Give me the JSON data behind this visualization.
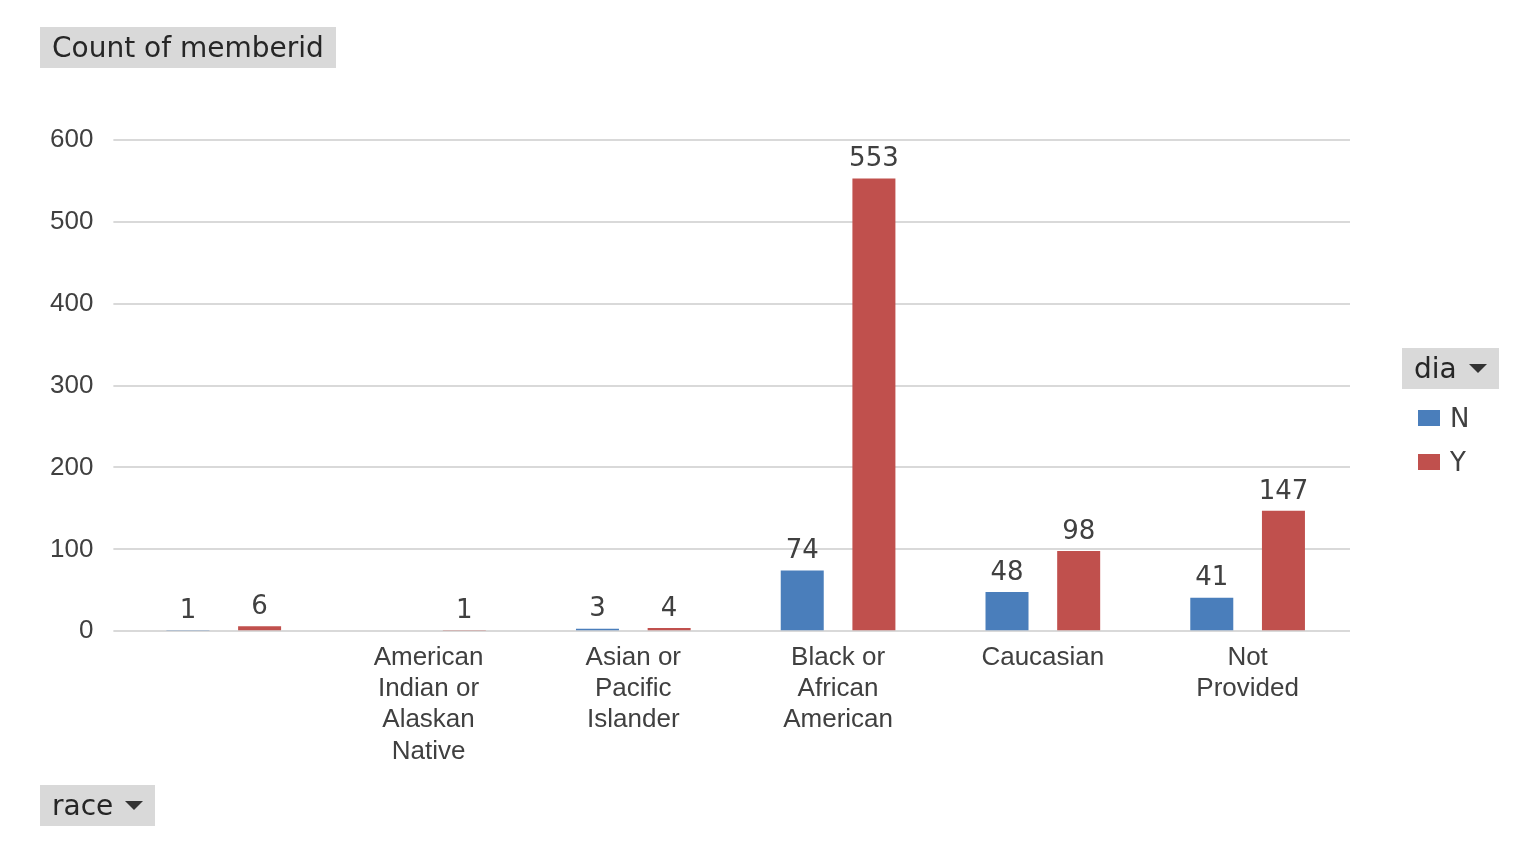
{
  "chart_data": {
    "type": "bar",
    "title": "Count of memberid",
    "xlabel": "race",
    "legend_title": "dia",
    "categories": [
      null,
      "American Indian or Alaskan Native",
      "Asian or Pacific Islander",
      "Black or African American",
      "Caucasian",
      "Not Provided"
    ],
    "series": [
      {
        "name": "N",
        "color": "#4a7ebb",
        "values": [
          1,
          null,
          3,
          74,
          48,
          41
        ]
      },
      {
        "name": "Y",
        "color": "#c0504d",
        "values": [
          6,
          1,
          4,
          553,
          98,
          147
        ]
      }
    ],
    "ylim": [
      0,
      600
    ],
    "yticks": [
      0,
      100,
      200,
      300,
      400,
      500,
      600
    ],
    "grid": "y",
    "legend": "right",
    "data_labels": true
  }
}
